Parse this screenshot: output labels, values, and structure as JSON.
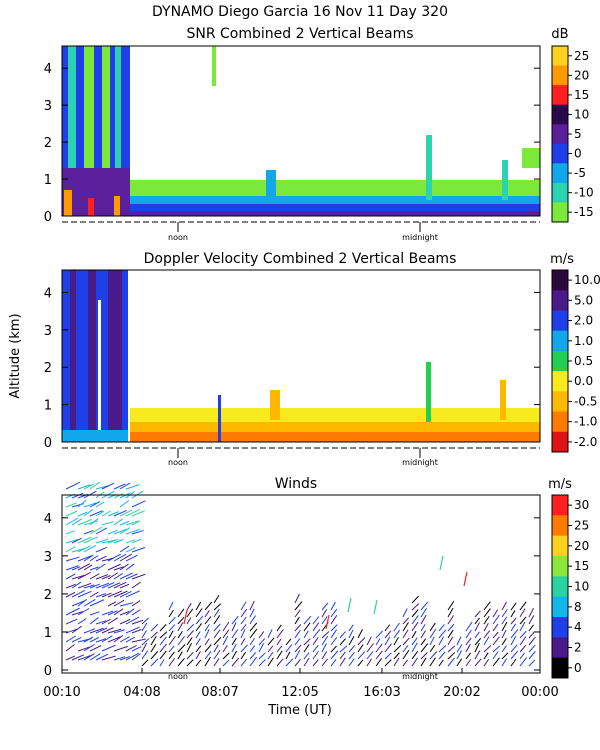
{
  "header": {
    "title": "DYNAMO Diego Garcia  16 Nov 11 Day 320"
  },
  "chart_data": [
    {
      "type": "heatmap",
      "title": "SNR Combined 2 Vertical Beams",
      "ylabel": "",
      "ylim": [
        0,
        4.6
      ],
      "y_ticks": [
        "0",
        "1",
        "2",
        "3",
        "4"
      ],
      "x_markers": [
        "noon",
        "midnight"
      ],
      "colorbar": {
        "unit": "dB",
        "labels": [
          "25",
          "20",
          "15",
          "10",
          "5",
          "0",
          "-5",
          "-10",
          "-15"
        ],
        "colors": [
          "#ffd21f",
          "#ff9a00",
          "#ff1f1f",
          "#2a0a4a",
          "#5a1f9a",
          "#1f3fe8",
          "#12a6ea",
          "#2bd3b0",
          "#7be83a"
        ]
      }
    },
    {
      "type": "heatmap",
      "title": "Doppler Velocity Combined 2 Vertical Beams",
      "ylabel": "Altitude (km)",
      "ylim": [
        0,
        4.6
      ],
      "y_ticks": [
        "0",
        "1",
        "2",
        "3",
        "4"
      ],
      "x_markers": [
        "noon",
        "midnight"
      ],
      "colorbar": {
        "unit": "m/s",
        "labels": [
          "10.0",
          "5.0",
          "2.0",
          "1.0",
          "0.5",
          "0.0",
          "-0.5",
          "-1.0",
          "-2.0"
        ],
        "colors": [
          "#2a0a3a",
          "#4a1a8a",
          "#1f3fe8",
          "#12a6ea",
          "#22cf50",
          "#f7ea1f",
          "#ffb800",
          "#ff7a00",
          "#e01414"
        ]
      }
    },
    {
      "type": "scatter",
      "title": "Winds",
      "ylim": [
        0,
        4.6
      ],
      "y_ticks": [
        "0",
        "1",
        "2",
        "3",
        "4"
      ],
      "x_markers": [
        "noon",
        "midnight"
      ],
      "x_tick_labels": [
        "00:10",
        "04:08",
        "08:07",
        "12:05",
        "16:03",
        "20:02",
        "00:00"
      ],
      "xlabel": "Time (UT)",
      "colorbar": {
        "unit": "m/s",
        "labels": [
          "30",
          "25",
          "20",
          "15",
          "10",
          "8",
          "4",
          "2",
          "0"
        ],
        "colors": [
          "#ff1f1f",
          "#ff7a00",
          "#ffd21f",
          "#8be83a",
          "#2bd3a0",
          "#12b6ea",
          "#1f3fe8",
          "#4a1a8a",
          "#000000"
        ]
      }
    }
  ]
}
